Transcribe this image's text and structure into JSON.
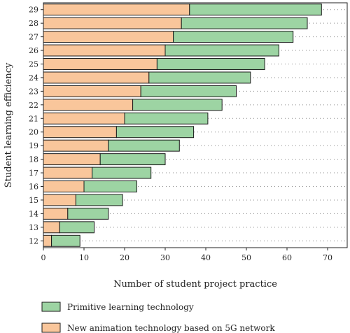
{
  "chart_data": {
    "type": "bar",
    "orientation": "horizontal",
    "stacked": true,
    "categories": [
      "12",
      "13",
      "14",
      "15",
      "16",
      "17",
      "18",
      "19",
      "20",
      "21",
      "22",
      "23",
      "24",
      "25",
      "26",
      "27",
      "28",
      "29"
    ],
    "series": [
      {
        "name": "New animation technology based on 5G network",
        "color": "#f9c69b",
        "values": [
          2,
          4,
          6,
          8,
          10,
          12,
          14,
          16,
          18,
          20,
          22,
          24,
          26,
          28,
          30,
          32,
          34,
          36
        ]
      },
      {
        "name": "Primitive learning technology",
        "color": "#9dd4a3",
        "values": [
          7,
          8.5,
          10,
          11.5,
          13,
          14.5,
          16,
          17.5,
          19,
          20.5,
          22,
          23.5,
          25,
          26.5,
          28,
          29.5,
          31,
          32.5
        ]
      }
    ],
    "title": "",
    "xlabel": "Number of student project practice",
    "ylabel": "Student learning efficiency",
    "xlim": [
      0,
      75
    ],
    "xticks": [
      0,
      10,
      20,
      30,
      40,
      50,
      60,
      70
    ],
    "grid": "dotted-horizontal",
    "legend_position": "bottom",
    "legend_order": [
      "Primitive learning technology",
      "New animation technology based on 5G network"
    ]
  }
}
